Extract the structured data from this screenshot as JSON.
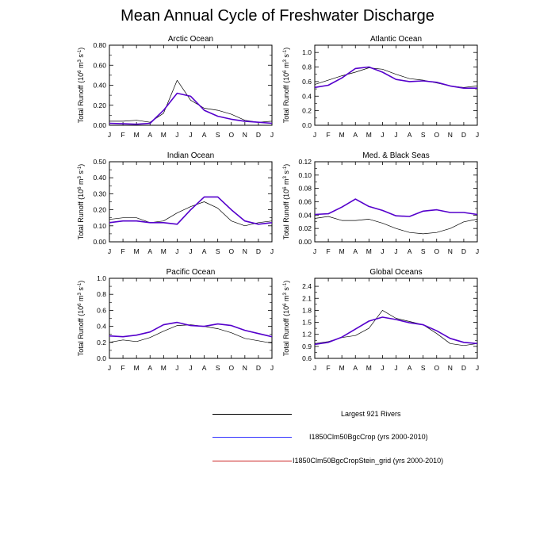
{
  "title": "Mean Annual Cycle of Freshwater Discharge",
  "months": [
    "J",
    "F",
    "M",
    "A",
    "M",
    "J",
    "J",
    "A",
    "S",
    "O",
    "N",
    "D",
    "J"
  ],
  "ylabel": "Total Runoff",
  "ylabel_unit_base": "(10",
  "ylabel_unit_exp": "6",
  "ylabel_unit_mid": " m",
  "ylabel_unit_exp2": "3",
  "ylabel_unit_mid2": " s",
  "ylabel_unit_exp3": "-1",
  "ylabel_unit_end": ")",
  "series_colors": {
    "rivers": "#000000",
    "crop": "#3333ff",
    "stein": "#cc2222",
    "overlap": "#5500cc"
  },
  "legend": [
    {
      "label": "Largest 921 Rivers",
      "color": "#000000"
    },
    {
      "label": "I1850Clm50BgcCrop (yrs 2000-2010)",
      "color": "#3333ff"
    },
    {
      "label": "I1850Clm50BgcCropStein_grid (yrs 2000-2010)",
      "color": "#cc2222"
    }
  ],
  "chart_data": [
    {
      "type": "line",
      "title": "Arctic Ocean",
      "ylim": [
        0,
        0.8
      ],
      "yticks": [
        0,
        0.2,
        0.4,
        0.6,
        0.8
      ],
      "yticklabels": [
        "0.00",
        "0.20",
        "0.40",
        "0.60",
        "0.80"
      ],
      "series": [
        {
          "values": [
            0.04,
            0.04,
            0.05,
            0.03,
            0.12,
            0.45,
            0.25,
            0.17,
            0.15,
            0.11,
            0.05,
            0.03,
            0.04
          ]
        },
        {
          "values": [
            0.02,
            0.015,
            0.01,
            0.02,
            0.15,
            0.32,
            0.29,
            0.15,
            0.09,
            0.06,
            0.04,
            0.03,
            0.02
          ]
        }
      ]
    },
    {
      "type": "line",
      "title": "Atlantic Ocean",
      "ylim": [
        0,
        1.1
      ],
      "yticks": [
        0,
        0.2,
        0.4,
        0.6,
        0.8,
        1.0
      ],
      "yticklabels": [
        "0.0",
        "0.2",
        "0.4",
        "0.6",
        "0.8",
        "1.0"
      ],
      "series": [
        {
          "values": [
            0.56,
            0.62,
            0.68,
            0.73,
            0.79,
            0.77,
            0.7,
            0.64,
            0.62,
            0.58,
            0.54,
            0.52,
            0.54
          ]
        },
        {
          "values": [
            0.52,
            0.55,
            0.65,
            0.78,
            0.8,
            0.73,
            0.63,
            0.6,
            0.61,
            0.59,
            0.54,
            0.51,
            0.51
          ]
        }
      ]
    },
    {
      "type": "line",
      "title": "Indian Ocean",
      "ylim": [
        0,
        0.5
      ],
      "yticks": [
        0,
        0.1,
        0.2,
        0.3,
        0.4,
        0.5
      ],
      "yticklabels": [
        "0.00",
        "0.10",
        "0.20",
        "0.30",
        "0.40",
        "0.50"
      ],
      "series": [
        {
          "values": [
            0.14,
            0.15,
            0.15,
            0.12,
            0.13,
            0.18,
            0.22,
            0.25,
            0.21,
            0.13,
            0.1,
            0.12,
            0.13
          ]
        },
        {
          "values": [
            0.12,
            0.13,
            0.13,
            0.12,
            0.12,
            0.11,
            0.2,
            0.28,
            0.28,
            0.2,
            0.13,
            0.11,
            0.12
          ]
        }
      ]
    },
    {
      "type": "line",
      "title": "Med. & Black Seas",
      "ylim": [
        0,
        0.12
      ],
      "yticks": [
        0,
        0.02,
        0.04,
        0.06,
        0.08,
        0.1,
        0.12
      ],
      "yticklabels": [
        "0.00",
        "0.02",
        "0.04",
        "0.06",
        "0.08",
        "0.10",
        "0.12"
      ],
      "series": [
        {
          "values": [
            0.035,
            0.038,
            0.032,
            0.032,
            0.034,
            0.028,
            0.02,
            0.014,
            0.012,
            0.014,
            0.02,
            0.03,
            0.034
          ]
        },
        {
          "values": [
            0.041,
            0.042,
            0.052,
            0.064,
            0.053,
            0.047,
            0.039,
            0.038,
            0.046,
            0.048,
            0.044,
            0.044,
            0.041
          ]
        }
      ]
    },
    {
      "type": "line",
      "title": "Pacific Ocean",
      "ylim": [
        0,
        1.0
      ],
      "yticks": [
        0,
        0.2,
        0.4,
        0.6,
        0.8,
        1.0
      ],
      "yticklabels": [
        "0.0",
        "0.2",
        "0.4",
        "0.6",
        "0.8",
        "1.0"
      ],
      "series": [
        {
          "values": [
            0.2,
            0.23,
            0.21,
            0.26,
            0.34,
            0.41,
            0.42,
            0.4,
            0.37,
            0.32,
            0.25,
            0.22,
            0.19
          ]
        },
        {
          "values": [
            0.28,
            0.27,
            0.29,
            0.33,
            0.42,
            0.45,
            0.41,
            0.4,
            0.43,
            0.41,
            0.35,
            0.31,
            0.27
          ]
        }
      ]
    },
    {
      "type": "line",
      "title": "Global Oceans",
      "ylim": [
        0.6,
        2.6
      ],
      "yticks": [
        0.6,
        0.9,
        1.2,
        1.5,
        1.8,
        2.1,
        2.4
      ],
      "yticklabels": [
        "0.6",
        "0.9",
        "1.2",
        "1.5",
        "1.8",
        "2.1",
        "2.4"
      ],
      "series": [
        {
          "values": [
            0.97,
            1.02,
            1.12,
            1.17,
            1.35,
            1.8,
            1.6,
            1.52,
            1.44,
            1.22,
            0.97,
            0.92,
            0.97
          ]
        },
        {
          "values": [
            0.95,
            1.0,
            1.13,
            1.33,
            1.53,
            1.63,
            1.57,
            1.49,
            1.44,
            1.29,
            1.1,
            1.0,
            0.97
          ]
        }
      ]
    }
  ]
}
